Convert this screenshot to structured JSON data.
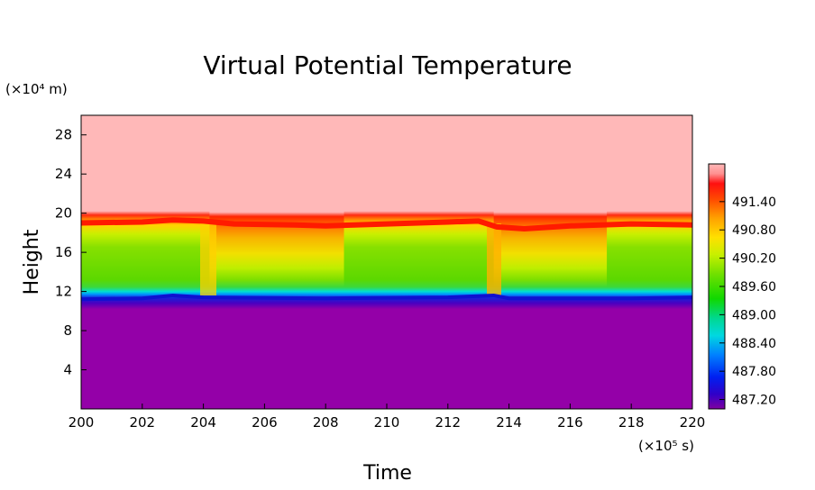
{
  "chart_data": {
    "type": "heatmap",
    "title": "Virtual Potential Temperature",
    "xlabel": "Time",
    "ylabel": "Height",
    "x_unit": "(×10⁵ s)",
    "y_unit": "(×10⁴ m)",
    "xlim": [
      200,
      220
    ],
    "ylim": [
      0,
      30
    ],
    "x_ticks": [
      "200",
      "202",
      "204",
      "206",
      "208",
      "210",
      "212",
      "214",
      "216",
      "218",
      "220"
    ],
    "y_ticks": [
      "4",
      "8",
      "12",
      "16",
      "20",
      "24",
      "28"
    ],
    "colorbar": {
      "range": [
        487.0,
        492.2
      ],
      "tick_values": [
        487.2,
        487.8,
        488.4,
        489.0,
        489.6,
        490.2,
        490.8,
        491.4
      ],
      "tick_labels": [
        "487.20",
        "487.80",
        "488.40",
        "489.00",
        "489.60",
        "490.20",
        "490.80",
        "491.40"
      ]
    },
    "layers": [
      {
        "height_range": [
          0,
          11.3
        ],
        "value": 487.05,
        "color": "#9400a8"
      },
      {
        "height_range": [
          11.3,
          12.2
        ],
        "value": 488.4,
        "color": "#2a6cf0"
      },
      {
        "height_range": [
          12.2,
          19.0
        ],
        "value": 489.9,
        "color": "#7ee000"
      },
      {
        "height_range": [
          19.0,
          30
        ],
        "value": 492.2,
        "color": "#ffb8b8"
      }
    ],
    "colors": {
      "upper_layer": "#ffb8b8",
      "lower_layer": "#9400a8",
      "mixed_layer": "#7ee000",
      "inversion": "#ff2a00"
    }
  }
}
